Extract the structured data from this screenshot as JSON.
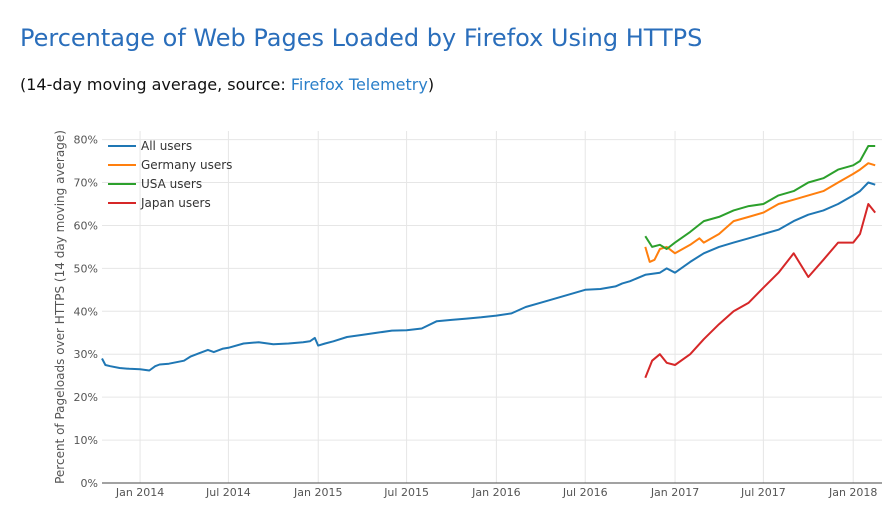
{
  "header": {
    "title": "Percentage of Web Pages Loaded by Firefox Using HTTPS",
    "subtitle_prefix": "(14-day moving average, source: ",
    "subtitle_link": "Firefox Telemetry",
    "subtitle_suffix": ")"
  },
  "colors": {
    "title": "#2a6ebb",
    "link": "#2a7fc9",
    "grid": "#e6e6e6",
    "axis": "#444444"
  },
  "chart_data": {
    "type": "line",
    "title": "Percentage of Web Pages Loaded by Firefox Using HTTPS",
    "xlabel": "",
    "ylabel": "Percent of Pageloads over HTTPS (14 day moving average)",
    "xlim": [
      "2013-10-15",
      "2018-03-01"
    ],
    "ylim": [
      0,
      82
    ],
    "y_ticks": [
      0,
      10,
      20,
      30,
      40,
      50,
      60,
      70,
      80
    ],
    "y_tick_labels": [
      "0%",
      "10%",
      "20%",
      "30%",
      "40%",
      "50%",
      "60%",
      "70%",
      "80%"
    ],
    "x_ticks": [
      "2014-01-01",
      "2014-07-01",
      "2015-01-01",
      "2015-07-01",
      "2016-01-01",
      "2016-07-01",
      "2017-01-01",
      "2017-07-01",
      "2018-01-01"
    ],
    "x_tick_labels": [
      "Jan 2014",
      "Jul 2014",
      "Jan 2015",
      "Jul 2015",
      "Jan 2016",
      "Jul 2016",
      "Jan 2017",
      "Jul 2017",
      "Jan 2018"
    ],
    "grid": true,
    "legend_position": "top-left",
    "series": [
      {
        "name": "All users",
        "color": "#1f77b4",
        "x": [
          "2013-10-15",
          "2013-10-22",
          "2013-11-01",
          "2013-11-20",
          "2013-12-10",
          "2014-01-01",
          "2014-01-20",
          "2014-02-01",
          "2014-02-10",
          "2014-03-01",
          "2014-04-01",
          "2014-04-15",
          "2014-05-01",
          "2014-05-20",
          "2014-06-01",
          "2014-06-20",
          "2014-07-01",
          "2014-08-01",
          "2014-09-01",
          "2014-10-01",
          "2014-11-01",
          "2014-12-01",
          "2014-12-15",
          "2014-12-25",
          "2015-01-01",
          "2015-01-15",
          "2015-02-01",
          "2015-03-01",
          "2015-04-01",
          "2015-05-01",
          "2015-06-01",
          "2015-07-01",
          "2015-08-01",
          "2015-09-01",
          "2015-10-01",
          "2015-11-01",
          "2015-12-01",
          "2016-01-01",
          "2016-02-01",
          "2016-03-01",
          "2016-04-01",
          "2016-05-01",
          "2016-06-01",
          "2016-07-01",
          "2016-08-01",
          "2016-09-01",
          "2016-09-15",
          "2016-10-01",
          "2016-11-01",
          "2016-12-01",
          "2016-12-15",
          "2017-01-01",
          "2017-02-01",
          "2017-03-01",
          "2017-04-01",
          "2017-05-01",
          "2017-06-01",
          "2017-07-01",
          "2017-08-01",
          "2017-09-01",
          "2017-10-01",
          "2017-11-01",
          "2017-12-01",
          "2018-01-01",
          "2018-01-15",
          "2018-02-01",
          "2018-02-15"
        ],
        "values": [
          29,
          27.5,
          27.2,
          26.8,
          26.6,
          26.5,
          26.2,
          27.2,
          27.6,
          27.8,
          28.5,
          29.5,
          30.2,
          31,
          30.5,
          31.3,
          31.5,
          32.5,
          32.8,
          32.3,
          32.5,
          32.8,
          33,
          33.8,
          32,
          32.5,
          33,
          34,
          34.5,
          35,
          35.5,
          35.6,
          36,
          37.7,
          38,
          38.3,
          38.6,
          39,
          39.5,
          41,
          42,
          43,
          44,
          45,
          45.2,
          45.8,
          46.5,
          47,
          48.5,
          49,
          50,
          49,
          51.5,
          53.5,
          55,
          56,
          57,
          58,
          59,
          61,
          62.5,
          63.5,
          65,
          67,
          68,
          70,
          69.5
        ]
      },
      {
        "name": "Germany users",
        "color": "#ff7f0e",
        "x": [
          "2016-11-01",
          "2016-11-10",
          "2016-11-20",
          "2016-12-01",
          "2016-12-15",
          "2017-01-01",
          "2017-02-01",
          "2017-02-20",
          "2017-03-01",
          "2017-04-01",
          "2017-05-01",
          "2017-06-01",
          "2017-07-01",
          "2017-08-01",
          "2017-09-01",
          "2017-10-01",
          "2017-11-01",
          "2017-12-01",
          "2018-01-01",
          "2018-01-15",
          "2018-02-01",
          "2018-02-15"
        ],
        "values": [
          55,
          51.5,
          52,
          54.5,
          55,
          53.5,
          55.5,
          57,
          56,
          58,
          61,
          62,
          63,
          65,
          66,
          67,
          68,
          70,
          72,
          73,
          74.5,
          74
        ]
      },
      {
        "name": "USA users",
        "color": "#2ca02c",
        "x": [
          "2016-11-01",
          "2016-11-15",
          "2016-12-01",
          "2016-12-15",
          "2017-01-01",
          "2017-02-01",
          "2017-03-01",
          "2017-04-01",
          "2017-05-01",
          "2017-06-01",
          "2017-07-01",
          "2017-08-01",
          "2017-09-01",
          "2017-10-01",
          "2017-11-01",
          "2017-12-01",
          "2018-01-01",
          "2018-01-15",
          "2018-02-01",
          "2018-02-15"
        ],
        "values": [
          57.5,
          55,
          55.5,
          54.5,
          56,
          58.5,
          61,
          62,
          63.5,
          64.5,
          65,
          67,
          68,
          70,
          71,
          73,
          74,
          75,
          78.5,
          78.5
        ]
      },
      {
        "name": "Japan users",
        "color": "#d62728",
        "x": [
          "2016-11-01",
          "2016-11-15",
          "2016-12-01",
          "2016-12-15",
          "2017-01-01",
          "2017-02-01",
          "2017-03-01",
          "2017-04-01",
          "2017-05-01",
          "2017-06-01",
          "2017-07-01",
          "2017-08-01",
          "2017-09-01",
          "2017-10-01",
          "2017-11-01",
          "2017-12-01",
          "2018-01-01",
          "2018-01-15",
          "2018-02-01",
          "2018-02-15"
        ],
        "values": [
          24.5,
          28.5,
          30,
          28,
          27.5,
          30,
          33.5,
          37,
          40,
          42,
          45.5,
          49,
          53.5,
          48,
          52,
          56,
          56,
          58,
          65,
          63
        ]
      }
    ]
  }
}
